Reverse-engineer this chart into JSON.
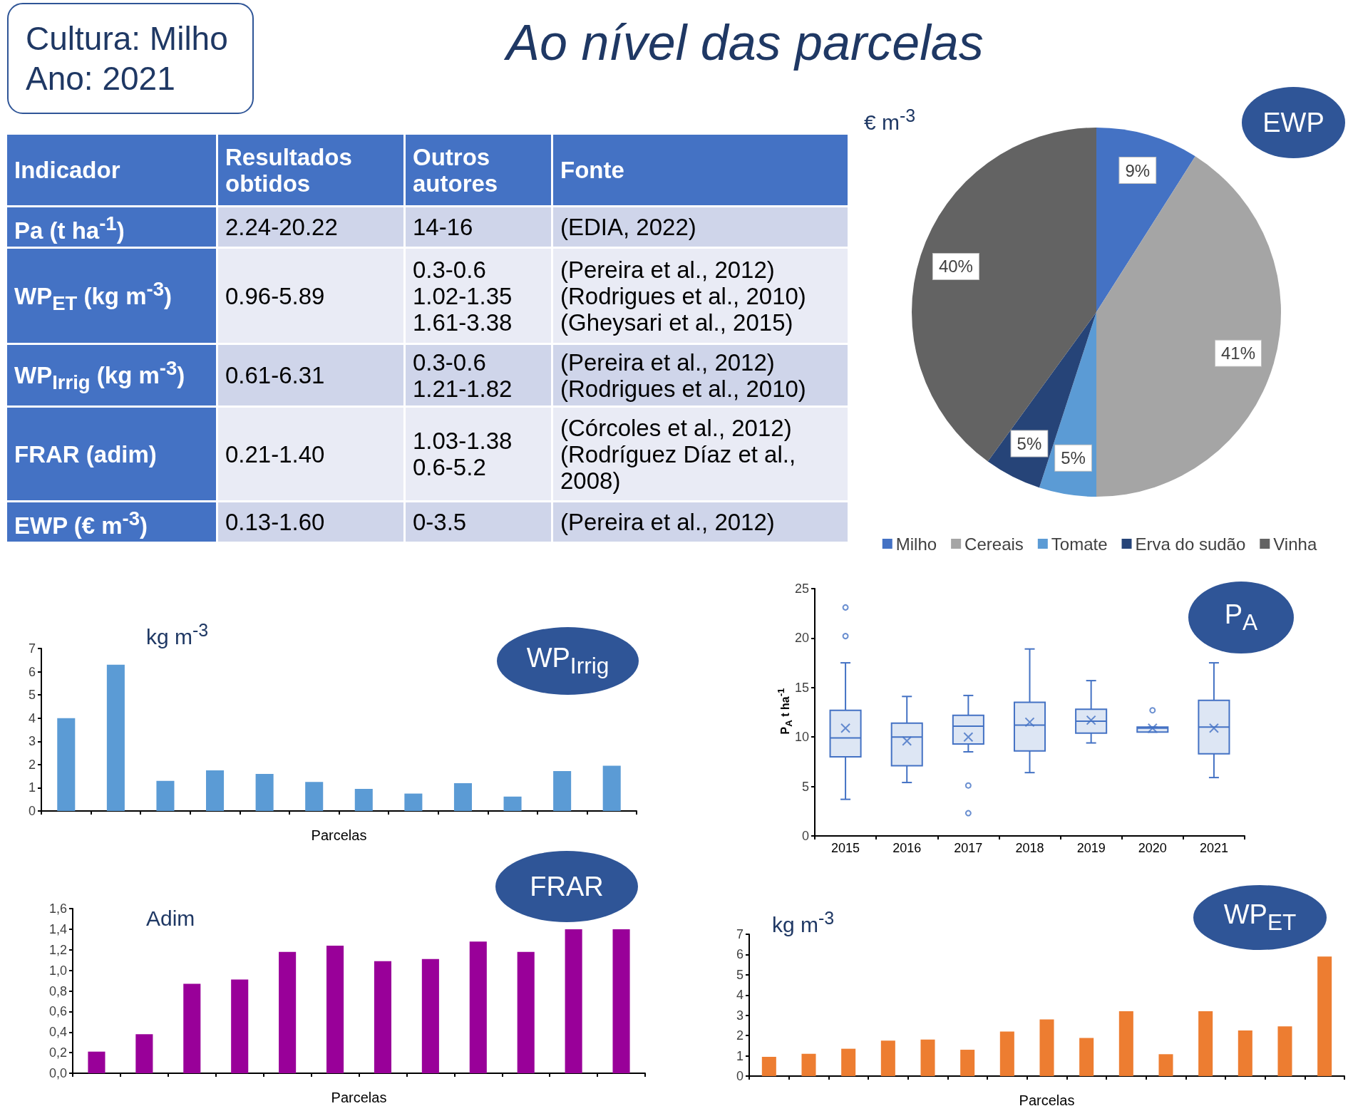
{
  "chart_data": [
    {
      "type": "other",
      "title": "Ao nível das parcelas",
      "subtitle": "Cultura: Milho\nAno: 2021",
      "categories": [
        "Indicador",
        "Resultados obtidos",
        "Outros autores",
        "Fonte"
      ],
      "cell_labels": [
        [
          "Pa (t ha$^{-1}$)",
          "2.24-20.22",
          "14-16",
          "(EDIA, 2022)"
        ],
        [
          "WP$_{ET}$ (kg m$^{-3}$)",
          "0.96-5.89",
          "0.3-0.6\n1.02-1.35\n1.61-3.38",
          "(Pereira et al., 2012)\n(Rodrigues et al., 2010)\n(Gheysari et al., 2015)"
        ],
        [
          "WP$_{Irrig}$ (kg m$^{-3}$)",
          "0.61-6.31",
          "0.3-0.6\n1.21-1.82",
          "(Pereira et al., 2012)\n(Rodrigues et al., 2010)"
        ],
        [
          "FRAR (adim)",
          "0.21-1.40",
          "1.03-1.38\n0.6-5.2",
          "(Córcoles et al., 2012)\n(Rodríguez Díaz et al., 2008)"
        ],
        [
          "EWP (€ m$^{-3}$)",
          "0.13-1.60",
          "0-3.5",
          "(Pereira et al., 2012)"
        ]
      ]
    },
    {
      "type": "pie",
      "title": "EWP",
      "subtitle": "€ m$^{-3}$",
      "categories": [
        "Milho",
        "Cereais",
        "Tomate",
        "Erva do sudão",
        "Vinha"
      ],
      "values": [
        9,
        41,
        5,
        5,
        40
      ],
      "value_labels": [
        "9%",
        "41%",
        "5%",
        "5%",
        "40%"
      ],
      "colors": [
        "#4472c4",
        "#a5a5a5",
        "#5b9bd5",
        "#264478",
        "#636363"
      ],
      "legend": "bottom"
    },
    {
      "type": "bar",
      "title": "WP$_{Irrig}$",
      "ylabel": "kg m$^{-3}$",
      "xlabel": "Parcelas",
      "categories": [
        null,
        null,
        null,
        null,
        null,
        null,
        null,
        null,
        null,
        null,
        null,
        null
      ],
      "values": [
        4.0,
        6.3,
        1.3,
        1.75,
        1.6,
        1.25,
        0.95,
        0.75,
        1.2,
        0.62,
        1.72,
        1.95
      ],
      "color": "#5b9bd5",
      "ylim": [
        0,
        7
      ],
      "yticks": [
        0,
        1,
        2,
        3,
        4,
        5,
        6,
        7
      ]
    },
    {
      "type": "bar",
      "title": "FRAR",
      "ylabel": "Adim",
      "xlabel": "Parcelas",
      "categories": [
        null,
        null,
        null,
        null,
        null,
        null,
        null,
        null,
        null,
        null,
        null,
        null
      ],
      "values": [
        0.21,
        0.38,
        0.87,
        0.91,
        1.18,
        1.24,
        1.09,
        1.11,
        1.28,
        1.18,
        1.4,
        1.4
      ],
      "color": "#990099",
      "ylim": [
        0,
        1.6
      ],
      "yticks": [
        {
          "value": 0,
          "label": "0,0"
        },
        {
          "value": 0.2,
          "label": "0,2"
        },
        {
          "value": 0.4,
          "label": "0,4"
        },
        {
          "value": 0.6,
          "label": "0,6"
        },
        {
          "value": 0.8,
          "label": "0,8"
        },
        {
          "value": 1.0,
          "label": "1,0"
        },
        {
          "value": 1.2,
          "label": "1,2"
        },
        {
          "value": 1.4,
          "label": "1,4"
        },
        {
          "value": 1.6,
          "label": "1,6"
        }
      ]
    },
    {
      "type": "bar",
      "title": "WP$_{ET}$",
      "ylabel": "kg m$^{-3}$",
      "xlabel": "Parcelas",
      "categories": [
        null,
        null,
        null,
        null,
        null,
        null,
        null,
        null,
        null,
        null,
        null,
        null,
        null,
        null,
        null
      ],
      "values": [
        0.95,
        1.1,
        1.35,
        1.75,
        1.8,
        1.3,
        2.2,
        2.8,
        1.88,
        3.2,
        1.08,
        3.2,
        2.25,
        2.45,
        5.9
      ],
      "color": "#ed7d31",
      "ylim": [
        0,
        7
      ],
      "yticks": [
        0,
        1,
        2,
        3,
        4,
        5,
        6,
        7
      ]
    },
    {
      "type": "box",
      "title": "P$_{A}$",
      "ylabel": "P$_{A}$ t ha$^{-1}$",
      "categories": [
        "2015",
        "2016",
        "2017",
        "2018",
        "2019",
        "2020",
        "2021"
      ],
      "color": "#4472c4",
      "ylim": [
        0,
        25
      ],
      "yticks": [
        0,
        5,
        10,
        15,
        20,
        25
      ],
      "boxes": [
        {
          "low": 3.7,
          "q1": 8.0,
          "median": 9.9,
          "q3": 12.7,
          "high": 17.5,
          "mean": 10.9,
          "outliers": [
            20.2,
            23.1
          ]
        },
        {
          "low": 5.4,
          "q1": 7.1,
          "median": 10.0,
          "q3": 11.4,
          "high": 14.1,
          "mean": 9.6
        },
        {
          "low": 8.5,
          "q1": 9.3,
          "median": 11.1,
          "q3": 12.2,
          "high": 14.2,
          "mean": 10.0,
          "outliers": [
            5.1,
            2.3
          ]
        },
        {
          "low": 6.4,
          "q1": 8.6,
          "median": 11.2,
          "q3": 13.5,
          "high": 18.9,
          "mean": 11.5
        },
        {
          "low": 9.4,
          "q1": 10.4,
          "median": 11.6,
          "q3": 12.8,
          "high": 15.7,
          "mean": 11.7
        },
        {
          "low": 10.5,
          "q1": 10.5,
          "median": 10.9,
          "q3": 11.0,
          "high": 11.0,
          "mean": 10.9,
          "outliers": [
            12.7
          ]
        },
        {
          "low": 5.9,
          "q1": 8.3,
          "median": 11.0,
          "q3": 13.7,
          "high": 17.5,
          "mean": 10.9
        }
      ]
    }
  ]
}
